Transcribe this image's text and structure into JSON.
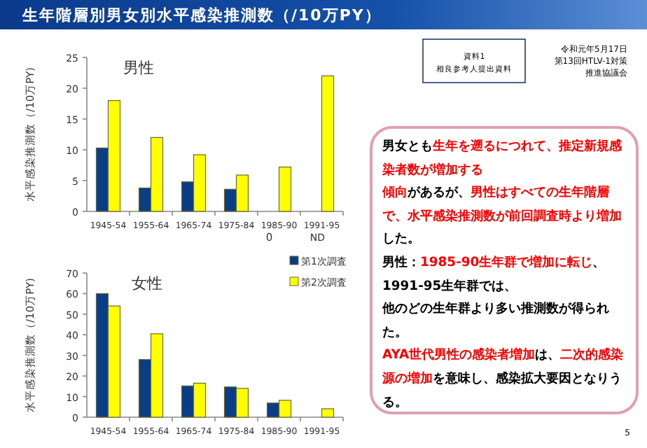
{
  "chart_data": [
    {
      "type": "bar",
      "title": "男性",
      "ylabel": "水平感染推測数（/10万PY)",
      "categories": [
        "1945-54",
        "1955-64",
        "1965-74",
        "1975-84",
        "1985-90",
        "1991-95"
      ],
      "series": [
        {
          "color": "#0b3d86",
          "values": [
            10.3,
            3.8,
            4.8,
            3.6,
            0,
            null
          ]
        },
        {
          "color": "#ffff00",
          "values": [
            18,
            12,
            9.2,
            5.9,
            7.2,
            22
          ]
        }
      ],
      "ylim": [
        0,
        25
      ],
      "yticks": [
        0,
        5,
        10,
        15,
        20,
        25
      ],
      "annotations": [
        {
          "text": "0",
          "x": "1985-90",
          "y": 0
        },
        "ND"
      ]
    },
    {
      "type": "bar",
      "title": "女性",
      "ylabel": "水平感染推測数（/10万PY)",
      "categories": [
        "1945-54",
        "1955-64",
        "1965-74",
        "1975-84",
        "1985-90",
        "1991-95"
      ],
      "series": [
        {
          "name": "第1次調査",
          "color": "#0b3d86",
          "values": [
            60,
            28,
            15.2,
            14.7,
            6.9,
            null
          ]
        },
        {
          "name": "第2次調査",
          "color": "#ffff00",
          "values": [
            54,
            40.5,
            16.5,
            14,
            8.2,
            4.1
          ]
        }
      ],
      "ylim": [
        0,
        70
      ],
      "yticks": [
        0,
        10,
        20,
        30,
        40,
        50,
        60,
        70
      ],
      "legend": "top right"
    },
    {
      "type": "other",
      "title": "生年階層別男女別水平感染推測数（/10万PY）",
      "annotations": [
        "資料1",
        "相良参考人提出資料",
        "令和元年5月17日",
        "第13回HTLV-1対策",
        "推進協議会",
        "5",
        "男女とも",
        "生年を遡るにつれて、推定新規感染者数が増加する",
        "\n傾向",
        "があるが、",
        "男性はすべての生年階層で、水平感染推測数が前回調査時より増加",
        "した。",
        "\n男性：",
        "1985-90生年群で増加に転じ",
        "、1991-95生年群では、",
        "\n他のどの生年群より多い推測数が得られた。",
        "\nAYA世代男性の感染者増加",
        "は、",
        "二次的感染源の増加",
        "を意味し、感染拡大要因となりうる。"
      ],
      "colors": [
        "#000000",
        "#000000",
        "#000000",
        "#000000",
        "#000000",
        "#000000",
        "#000000",
        "#ff0000",
        "#ff0000",
        "#000000",
        "#ff0000",
        "#000000",
        "#000000",
        "#ff0000",
        "#000000",
        "#000000",
        "#ff0000",
        "#000000",
        "#ff0000",
        "#000000"
      ]
    }
  ]
}
